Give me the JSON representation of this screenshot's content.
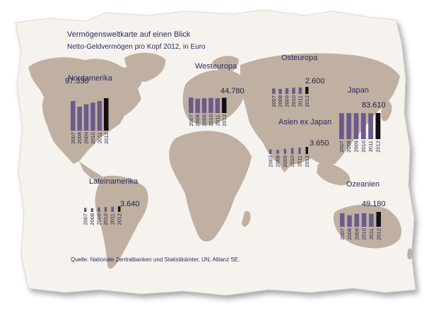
{
  "title": "Vermögensweltkarte auf einen Blick",
  "subtitle": "Netto-Geldvermögen pro Kopf 2012, in Euro",
  "source": "Quelle: Nationale Zentralbanken und Statistikämter, UN, Allianz SE.",
  "colors": {
    "paper": "#f6f3ee",
    "land": "#bfb0a1",
    "bar": "#6b5a8c",
    "bar_highlight": "#111111",
    "text": "#2b2a5e"
  },
  "chart_data": [
    {
      "type": "bar",
      "title": "Nordamerika",
      "categories": [
        "2007",
        "2008",
        "2009",
        "2010",
        "2011",
        "2012"
      ],
      "values": [
        89000,
        72000,
        79000,
        84000,
        89000,
        97330
      ],
      "value_label": "97.330"
    },
    {
      "type": "bar",
      "title": "Westeuropa",
      "categories": [
        "2007",
        "2008",
        "2009",
        "2010",
        "2011",
        "2012"
      ],
      "values": [
        45500,
        42000,
        43500,
        44500,
        43500,
        44780
      ],
      "value_label": "44.780"
    },
    {
      "type": "bar",
      "title": "Osteuropa",
      "categories": [
        "2007",
        "2008",
        "2009",
        "2010",
        "2011",
        "2012"
      ],
      "values": [
        2000,
        1900,
        2100,
        2300,
        2400,
        2600
      ],
      "value_label": "2.600"
    },
    {
      "type": "bar",
      "title": "Japan",
      "categories": [
        "2007",
        "2008",
        "2009",
        "2010",
        "2011",
        "2012"
      ],
      "values": [
        83000,
        83500,
        83000,
        83500,
        83000,
        83610
      ],
      "value_label": "83.610"
    },
    {
      "type": "bar",
      "title": "Asien ex Japan",
      "categories": [
        "2007",
        "2008",
        "2009",
        "2010",
        "2011",
        "2012"
      ],
      "values": [
        2400,
        2200,
        2700,
        3100,
        3300,
        3650
      ],
      "value_label": "3.650"
    },
    {
      "type": "bar",
      "title": "Lateinamerika",
      "categories": [
        "2007",
        "2008",
        "2009",
        "2010",
        "2011",
        "2012"
      ],
      "values": [
        2600,
        2400,
        2900,
        3200,
        3400,
        3640
      ],
      "value_label": "3.640"
    },
    {
      "type": "bar",
      "title": "Ozeanien",
      "categories": [
        "2007",
        "2008",
        "2009",
        "2010",
        "2011",
        "2012"
      ],
      "values": [
        45000,
        38000,
        43000,
        45000,
        43000,
        49180
      ],
      "value_label": "49.180"
    }
  ]
}
